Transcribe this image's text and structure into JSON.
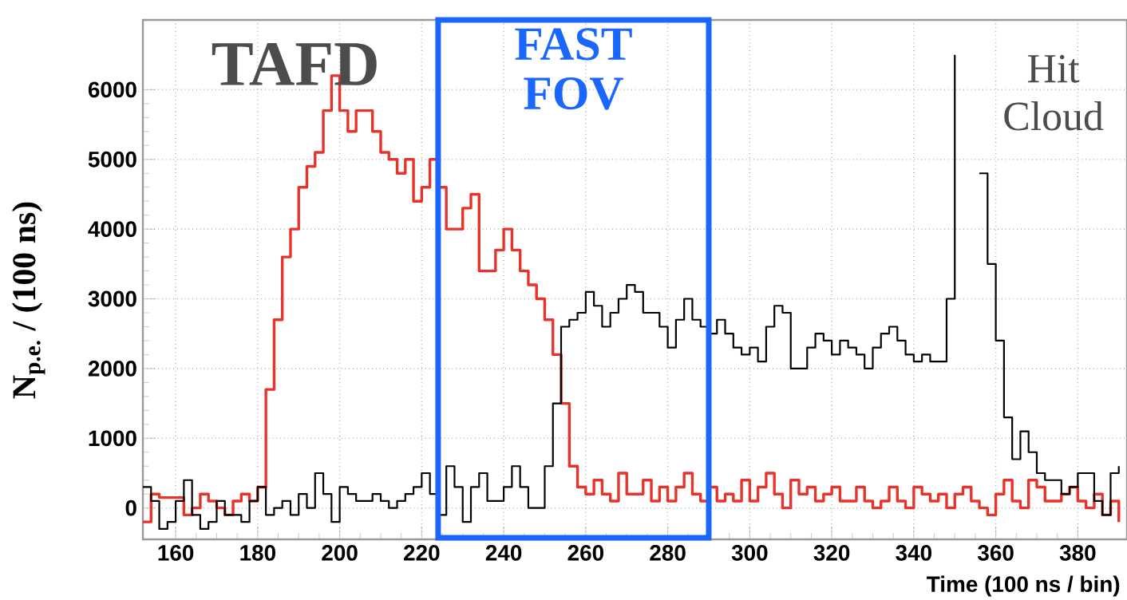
{
  "chart_data": {
    "type": "step",
    "xlabel": "Time (100 ns / bin)",
    "ylabel": "N$_{p.e.}$ / (100 ns)",
    "xlim": [
      152,
      392
    ],
    "ylim": [
      -450,
      7000
    ],
    "xticks": [
      160,
      180,
      200,
      220,
      240,
      260,
      280,
      300,
      320,
      340,
      360,
      380
    ],
    "yticks": [
      0,
      1000,
      2000,
      3000,
      4000,
      5000,
      6000
    ],
    "grid": true,
    "x": [
      152,
      154,
      156,
      158,
      160,
      162,
      164,
      166,
      168,
      170,
      172,
      174,
      176,
      178,
      180,
      182,
      184,
      186,
      188,
      190,
      192,
      194,
      196,
      198,
      200,
      202,
      204,
      206,
      208,
      210,
      212,
      214,
      216,
      218,
      220,
      222,
      224,
      226,
      228,
      230,
      232,
      234,
      236,
      238,
      240,
      242,
      244,
      246,
      248,
      250,
      252,
      254,
      256,
      258,
      260,
      262,
      264,
      266,
      268,
      270,
      272,
      274,
      276,
      278,
      280,
      282,
      284,
      286,
      288,
      290,
      292,
      294,
      296,
      298,
      300,
      302,
      304,
      306,
      308,
      310,
      312,
      314,
      316,
      318,
      320,
      322,
      324,
      326,
      328,
      330,
      332,
      334,
      336,
      338,
      340,
      342,
      344,
      346,
      348,
      350,
      352,
      354,
      356,
      358,
      360,
      362,
      364,
      366,
      368,
      370,
      372,
      374,
      376,
      378,
      380,
      382,
      384,
      386,
      388,
      390
    ],
    "series": [
      {
        "color": "#e8332b",
        "values": [
          -200,
          200,
          150,
          150,
          150,
          -100,
          0,
          200,
          100,
          0,
          -100,
          100,
          200,
          100,
          300,
          1700,
          2700,
          3600,
          4000,
          4600,
          4900,
          5100,
          5700,
          6200,
          5700,
          5400,
          5700,
          5700,
          5400,
          5100,
          5000,
          4800,
          5000,
          4400,
          4600,
          5000,
          4600,
          4000,
          4000,
          4300,
          4500,
          3400,
          3400,
          3700,
          4000,
          3700,
          3400,
          3200,
          3000,
          2700,
          2200,
          1500,
          600,
          300,
          200,
          400,
          200,
          100,
          500,
          200,
          200,
          400,
          100,
          300,
          100,
          300,
          500,
          200,
          100,
          300,
          100,
          200,
          100,
          400,
          100,
          300,
          500,
          200,
          0,
          400,
          200,
          300,
          100,
          200,
          300,
          100,
          100,
          300,
          100,
          0,
          100,
          300,
          100,
          0,
          300,
          200,
          100,
          200,
          0,
          200,
          300,
          100,
          0,
          -100,
          200,
          400,
          100,
          0,
          400,
          300,
          100,
          100,
          200,
          300,
          100,
          0,
          200,
          -100,
          100,
          -200
        ]
      },
      {
        "color": "#000000",
        "values": [
          300,
          100,
          -300,
          -200,
          100,
          400,
          -100,
          -300,
          -200,
          100,
          -100,
          -100,
          -200,
          100,
          300,
          -100,
          0,
          100,
          -100,
          200,
          0,
          500,
          200,
          -200,
          300,
          200,
          100,
          100,
          200,
          100,
          0,
          100,
          200,
          300,
          500,
          200,
          -100,
          600,
          300,
          -200,
          300,
          500,
          100,
          100,
          300,
          600,
          300,
          0,
          0,
          600,
          1500,
          2600,
          2700,
          2800,
          3100,
          2900,
          2600,
          2800,
          3000,
          3200,
          3100,
          2800,
          2800,
          2600,
          2300,
          2700,
          3000,
          2700,
          2600,
          2500,
          2700,
          2500,
          2300,
          2200,
          2300,
          2100,
          2600,
          2900,
          2800,
          2000,
          2000,
          2300,
          2500,
          2400,
          2200,
          2400,
          2300,
          2200,
          2000,
          2300,
          2500,
          2600,
          2400,
          2200,
          2100,
          2200,
          2100,
          2100,
          3000,
          6500,
          null,
          null,
          4800,
          3500,
          2400,
          1300,
          700,
          1100,
          800,
          500,
          400,
          400,
          200,
          300,
          500,
          500,
          100,
          -100,
          500,
          600
        ]
      }
    ],
    "annotations": [
      "TAFD",
      "FAST FOV",
      "Hit Cloud"
    ]
  }
}
